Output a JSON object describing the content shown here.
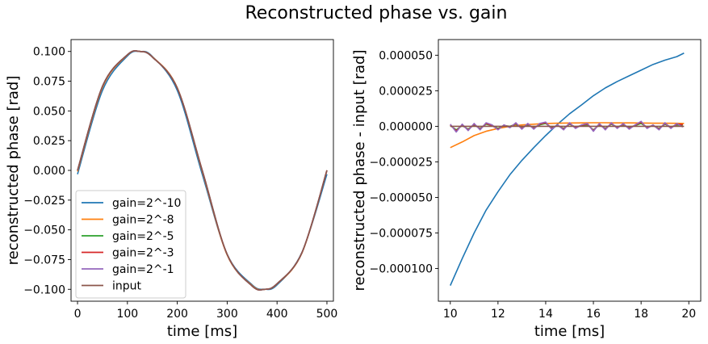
{
  "figure": {
    "title": "Reconstructed phase vs. gain"
  },
  "chart_data": [
    {
      "type": "line",
      "xlabel": "time [ms]",
      "ylabel": "reconstructed phase [rad]",
      "xlim": [
        -13,
        513
      ],
      "ylim": [
        -0.11,
        0.11
      ],
      "xticks": [
        0,
        100,
        200,
        300,
        400,
        500
      ],
      "xtick_labels": [
        "0",
        "100",
        "200",
        "300",
        "400",
        "500"
      ],
      "yticks": [
        -0.1,
        -0.075,
        -0.05,
        -0.025,
        0.0,
        0.025,
        0.05,
        0.075,
        0.1
      ],
      "ytick_labels": [
        "−0.100",
        "−0.075",
        "−0.050",
        "−0.025",
        "0.000",
        "0.025",
        "0.050",
        "0.075",
        "0.100"
      ],
      "legend_position": "lower-left",
      "grid": false,
      "series": [
        {
          "name": "gain=2^-10",
          "color": "#1f77b4",
          "x": [
            0,
            50,
            100,
            125,
            150,
            200,
            250,
            300,
            350,
            375,
            400,
            450,
            500
          ],
          "y": [
            -0.0032,
            0.0672,
            0.0962,
            0.0999,
            0.0958,
            0.0672,
            -0.0032,
            -0.0705,
            -0.0962,
            -0.0999,
            -0.0963,
            -0.0688,
            -0.0032
          ]
        },
        {
          "name": "gain=2^-8",
          "color": "#ff7f0e",
          "x": [
            0,
            50,
            100,
            125,
            150,
            200,
            250,
            300,
            350,
            375,
            400,
            450,
            500
          ],
          "y": [
            -0.0009,
            0.0698,
            0.097,
            0.1,
            0.0955,
            0.0695,
            -0.0008,
            -0.0712,
            -0.0968,
            -0.1,
            -0.0955,
            -0.0695,
            0.0
          ]
        },
        {
          "name": "gain=2^-5",
          "color": "#2ca02c",
          "x": [
            0,
            50,
            100,
            125,
            150,
            200,
            250,
            300,
            350,
            375,
            400,
            450,
            500
          ],
          "y": [
            0.0,
            0.0707,
            0.0972,
            0.1,
            0.0953,
            0.0691,
            0.0,
            -0.0707,
            -0.0972,
            -0.1,
            -0.0953,
            -0.0691,
            0.0
          ]
        },
        {
          "name": "gain=2^-3",
          "color": "#d62728",
          "x": [
            0,
            50,
            100,
            125,
            150,
            200,
            250,
            300,
            350,
            375,
            400,
            450,
            500
          ],
          "y": [
            0.0,
            0.0707,
            0.0972,
            0.1,
            0.0953,
            0.0691,
            0.0,
            -0.0707,
            -0.0972,
            -0.1,
            -0.0953,
            -0.0691,
            0.0
          ]
        },
        {
          "name": "gain=2^-1",
          "color": "#9467bd",
          "x": [
            0,
            50,
            100,
            125,
            150,
            200,
            250,
            300,
            350,
            375,
            400,
            450,
            500
          ],
          "y": [
            0.0,
            0.0707,
            0.0972,
            0.1,
            0.0953,
            0.0691,
            0.0,
            -0.0707,
            -0.0972,
            -0.1,
            -0.0953,
            -0.0691,
            0.0
          ]
        },
        {
          "name": "input",
          "color": "#8c564b",
          "x": [
            0,
            50,
            100,
            125,
            150,
            200,
            250,
            300,
            350,
            375,
            400,
            450,
            500
          ],
          "y": [
            0.0,
            0.0707,
            0.0972,
            0.1,
            0.0953,
            0.0691,
            0.0,
            -0.0707,
            -0.0972,
            -0.1,
            -0.0953,
            -0.0691,
            0.0
          ]
        }
      ]
    },
    {
      "type": "line",
      "xlabel": "time [ms]",
      "ylabel": "reconstructed phase - input [rad]",
      "xlim": [
        9.5,
        20.5
      ],
      "ylim": [
        -0.000123,
        6.1e-05
      ],
      "xticks": [
        10,
        12,
        14,
        16,
        18,
        20
      ],
      "xtick_labels": [
        "10",
        "12",
        "14",
        "16",
        "18",
        "20"
      ],
      "yticks": [
        -0.0001,
        -7.5e-05,
        -5e-05,
        -2.5e-05,
        0.0,
        2.5e-05,
        5e-05
      ],
      "ytick_labels": [
        "−0.000100",
        "−0.000075",
        "−0.000050",
        "−0.000025",
        "0.000000",
        "0.000025",
        "0.000050"
      ],
      "grid": false,
      "series": [
        {
          "name": "gain=2^-10",
          "color": "#1f77b4",
          "x": [
            10.0,
            10.5,
            11.0,
            11.5,
            12.0,
            12.5,
            13.0,
            13.5,
            14.0,
            14.5,
            15.0,
            15.5,
            16.0,
            16.5,
            17.0,
            17.5,
            18.0,
            18.5,
            19.0,
            19.5,
            19.8
          ],
          "y": [
            -0.000112,
            -9.3e-05,
            -7.5e-05,
            -5.9e-05,
            -4.6e-05,
            -3.4e-05,
            -2.4e-05,
            -1.5e-05,
            -6.5e-06,
            1.5e-06,
            8.8e-06,
            1.5e-05,
            2.15e-05,
            2.7e-05,
            3.15e-05,
            3.55e-05,
            3.95e-05,
            4.35e-05,
            4.65e-05,
            4.9e-05,
            5.15e-05
          ]
        },
        {
          "name": "gain=2^-8",
          "color": "#ff7f0e",
          "x": [
            10.0,
            10.5,
            11.0,
            11.5,
            12.0,
            12.5,
            13.0,
            13.5,
            14.0,
            14.5,
            15.0,
            15.5,
            16.0,
            16.5,
            17.0,
            17.5,
            18.0,
            18.5,
            19.0,
            19.5,
            19.8
          ],
          "y": [
            -1.5e-05,
            -1.1e-05,
            -6.5e-06,
            -3.5e-06,
            -1.5e-06,
            0.0,
            1e-06,
            1.5e-06,
            2e-06,
            2.2e-06,
            2.3e-06,
            2.4e-06,
            2.5e-06,
            2.5e-06,
            2.4e-06,
            2.4e-06,
            2.3e-06,
            2.2e-06,
            2.2e-06,
            2.1e-06,
            2e-06
          ]
        },
        {
          "name": "gain=2^-5",
          "color": "#2ca02c",
          "x": [
            10.0,
            10.25,
            10.5,
            10.75,
            11.0,
            11.25,
            11.5,
            11.75,
            12.0,
            12.25,
            12.5,
            12.75,
            13.0,
            13.25,
            13.5,
            13.75,
            14.0,
            14.25,
            14.5,
            14.75,
            15.0,
            15.25,
            15.5,
            15.75,
            16.0,
            16.25,
            16.5,
            16.75,
            17.0,
            17.25,
            17.5,
            17.75,
            18.0,
            18.25,
            18.5,
            18.75,
            19.0,
            19.25,
            19.5,
            19.75
          ],
          "y": [
            5e-07,
            -2.5e-06,
            5e-07,
            -2e-06,
            1e-06,
            -1.5e-06,
            1.5e-06,
            5e-07,
            -1.5e-06,
            5e-07,
            0.0,
            1.5e-06,
            -1e-06,
            1e-06,
            -1e-06,
            1e-06,
            2e-06,
            -1e-06,
            5e-07,
            -1.5e-06,
            1.5e-06,
            -5e-07,
            5e-07,
            1e-06,
            -2.5e-06,
            1e-06,
            -1.5e-06,
            1.5e-06,
            -5e-07,
            1e-06,
            -1e-06,
            5e-07,
            2e-06,
            -5e-07,
            5e-07,
            -1.5e-06,
            1.5e-06,
            -5e-07,
            1e-06,
            1e-06
          ]
        },
        {
          "name": "gain=2^-3",
          "color": "#d62728",
          "x": [
            10.0,
            10.25,
            10.5,
            10.75,
            11.0,
            11.25,
            11.5,
            11.75,
            12.0,
            12.25,
            12.5,
            12.75,
            13.0,
            13.25,
            13.5,
            13.75,
            14.0,
            14.25,
            14.5,
            14.75,
            15.0,
            15.25,
            15.5,
            15.75,
            16.0,
            16.25,
            16.5,
            16.75,
            17.0,
            17.25,
            17.5,
            17.75,
            18.0,
            18.25,
            18.5,
            18.75,
            19.0,
            19.25,
            19.5,
            19.75
          ],
          "y": [
            1e-06,
            -3.2e-06,
            1e-06,
            -2.5e-06,
            1.5e-06,
            -2e-06,
            2e-06,
            5e-07,
            -2e-06,
            8e-07,
            -5e-07,
            2e-06,
            -1.5e-06,
            1.5e-06,
            -1.5e-06,
            1.5e-06,
            2.5e-06,
            -1.5e-06,
            8e-07,
            -2e-06,
            2e-06,
            -1e-06,
            8e-07,
            1.5e-06,
            -3e-06,
            1.5e-06,
            -2e-06,
            2e-06,
            -1e-06,
            1.5e-06,
            -1.5e-06,
            8e-07,
            2.8e-06,
            -1e-06,
            8e-07,
            -2e-06,
            2e-06,
            -1e-06,
            1.5e-06,
            1.2e-06
          ]
        },
        {
          "name": "gain=2^-1",
          "color": "#9467bd",
          "x": [
            10.0,
            10.25,
            10.5,
            10.75,
            11.0,
            11.25,
            11.5,
            11.75,
            12.0,
            12.25,
            12.5,
            12.75,
            13.0,
            13.25,
            13.5,
            13.75,
            14.0,
            14.25,
            14.5,
            14.75,
            15.0,
            15.25,
            15.5,
            15.75,
            16.0,
            16.25,
            16.5,
            16.75,
            17.0,
            17.25,
            17.5,
            17.75,
            18.0,
            18.25,
            18.5,
            18.75,
            19.0,
            19.25,
            19.5,
            19.75
          ],
          "y": [
            1.5e-06,
            -4e-06,
            1.5e-06,
            -3e-06,
            2e-06,
            -2.5e-06,
            2.5e-06,
            1e-06,
            -2.5e-06,
            1e-06,
            -1e-06,
            2.5e-06,
            -2e-06,
            2e-06,
            -2e-06,
            2e-06,
            3e-06,
            -2e-06,
            1e-06,
            -2.5e-06,
            2.5e-06,
            -1.5e-06,
            1e-06,
            2e-06,
            -3.5e-06,
            2e-06,
            -2.5e-06,
            2.5e-06,
            -1.5e-06,
            2e-06,
            -2e-06,
            1e-06,
            3.5e-06,
            -1.5e-06,
            1e-06,
            -2.5e-06,
            2.5e-06,
            -1.5e-06,
            2e-06,
            -5e-07
          ]
        },
        {
          "name": "input",
          "color": "#8c564b",
          "x": [
            10.0,
            19.8
          ],
          "y": [
            0.0,
            0.0
          ]
        }
      ]
    }
  ]
}
